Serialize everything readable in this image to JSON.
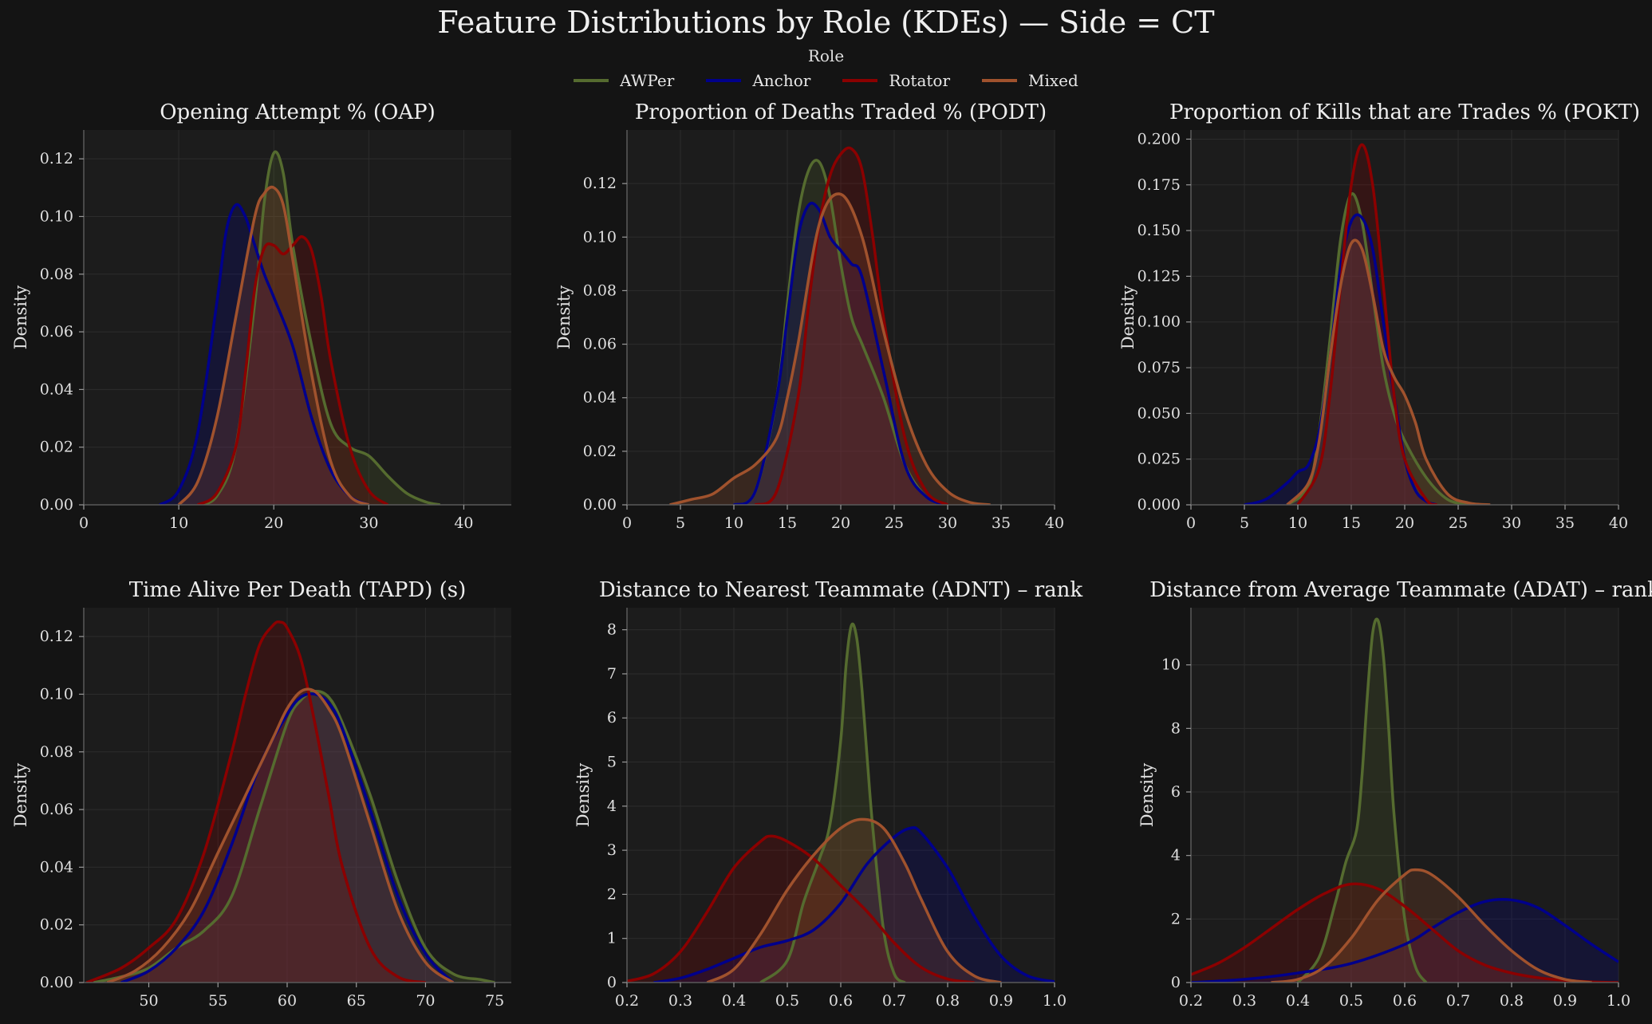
{
  "title": "Feature Distributions by Role (KDEs) — Side = CT",
  "legend": {
    "title": "Role",
    "placement": "top-center",
    "items": [
      {
        "label": "AWPer",
        "color": "#556b2f"
      },
      {
        "label": "Anchor",
        "color": "#00008b"
      },
      {
        "label": "Rotator",
        "color": "#8b0000"
      },
      {
        "label": "Mixed",
        "color": "#a0522d"
      }
    ]
  },
  "chart_data": [
    {
      "type": "area",
      "title": "Opening Attempt % (OAP)",
      "ylabel": "Density",
      "xlim": [
        0,
        45
      ],
      "ylim": [
        0,
        0.13
      ],
      "xticks": [
        0,
        10,
        20,
        30,
        40
      ],
      "yticks": [
        0.0,
        0.02,
        0.04,
        0.06,
        0.08,
        0.1,
        0.12
      ],
      "ytick_labels": [
        "0.00",
        "0.02",
        "0.04",
        "0.06",
        "0.08",
        "0.10",
        "0.12"
      ],
      "grid": true,
      "series": [
        {
          "name": "AWPer",
          "x": [
            12,
            14,
            16,
            18,
            19,
            20,
            21,
            22,
            24,
            26,
            28,
            30,
            32,
            34,
            36,
            37.5
          ],
          "y": [
            0,
            0.003,
            0.02,
            0.07,
            0.105,
            0.122,
            0.115,
            0.09,
            0.055,
            0.028,
            0.02,
            0.017,
            0.01,
            0.004,
            0.001,
            0
          ]
        },
        {
          "name": "Anchor",
          "x": [
            8,
            10,
            12,
            14,
            15,
            16,
            17,
            18,
            19,
            20,
            22,
            24,
            26,
            28,
            30
          ],
          "y": [
            0,
            0.005,
            0.025,
            0.07,
            0.095,
            0.104,
            0.1,
            0.09,
            0.08,
            0.072,
            0.055,
            0.03,
            0.012,
            0.003,
            0
          ]
        },
        {
          "name": "Rotator",
          "x": [
            12,
            14,
            16,
            17,
            18,
            19,
            20,
            21,
            22,
            23,
            24,
            25,
            26,
            28,
            30,
            32
          ],
          "y": [
            0,
            0.004,
            0.02,
            0.045,
            0.075,
            0.089,
            0.09,
            0.087,
            0.09,
            0.093,
            0.088,
            0.072,
            0.05,
            0.02,
            0.005,
            0
          ]
        },
        {
          "name": "Mixed",
          "x": [
            10,
            12,
            14,
            16,
            18,
            19,
            20,
            21,
            22,
            24,
            26,
            28,
            30
          ],
          "y": [
            0,
            0.008,
            0.03,
            0.065,
            0.1,
            0.108,
            0.11,
            0.104,
            0.085,
            0.045,
            0.015,
            0.003,
            0
          ]
        }
      ]
    },
    {
      "type": "area",
      "title": "Proportion of Deaths Traded % (PODT)",
      "ylabel": "Density",
      "xlim": [
        0,
        40
      ],
      "ylim": [
        0,
        0.14
      ],
      "xticks": [
        0,
        5,
        10,
        15,
        20,
        25,
        30,
        35,
        40
      ],
      "yticks": [
        0.0,
        0.02,
        0.04,
        0.06,
        0.08,
        0.1,
        0.12
      ],
      "ytick_labels": [
        "0.00",
        "0.02",
        "0.04",
        "0.06",
        "0.08",
        "0.10",
        "0.12"
      ],
      "grid": true,
      "series": [
        {
          "name": "AWPer",
          "x": [
            10,
            12,
            14,
            15,
            16,
            17,
            18,
            19,
            20,
            21,
            22,
            24,
            26,
            28,
            30
          ],
          "y": [
            0,
            0.005,
            0.04,
            0.075,
            0.108,
            0.125,
            0.128,
            0.115,
            0.09,
            0.07,
            0.06,
            0.04,
            0.015,
            0.003,
            0
          ]
        },
        {
          "name": "Anchor",
          "x": [
            10,
            12,
            14,
            15,
            16,
            17,
            18,
            19,
            20,
            21,
            22,
            24,
            26,
            28,
            30
          ],
          "y": [
            0,
            0.005,
            0.04,
            0.07,
            0.1,
            0.112,
            0.11,
            0.1,
            0.095,
            0.09,
            0.085,
            0.05,
            0.015,
            0.003,
            0
          ]
        },
        {
          "name": "Rotator",
          "x": [
            12,
            14,
            16,
            17,
            18,
            19,
            20,
            21,
            22,
            23,
            24,
            26,
            28,
            30
          ],
          "y": [
            0,
            0.005,
            0.04,
            0.075,
            0.105,
            0.123,
            0.131,
            0.133,
            0.125,
            0.1,
            0.07,
            0.025,
            0.005,
            0
          ]
        },
        {
          "name": "Mixed",
          "x": [
            4,
            6,
            8,
            10,
            12,
            14,
            15,
            16,
            18,
            20,
            22,
            24,
            26,
            28,
            30,
            32,
            34
          ],
          "y": [
            0,
            0.002,
            0.004,
            0.01,
            0.015,
            0.025,
            0.04,
            0.06,
            0.105,
            0.116,
            0.1,
            0.065,
            0.035,
            0.015,
            0.005,
            0.001,
            0
          ]
        }
      ]
    },
    {
      "type": "area",
      "title": "Proportion of Kills that are Trades % (POKT)",
      "ylabel": "Density",
      "xlim": [
        0,
        40
      ],
      "ylim": [
        0,
        0.205
      ],
      "xticks": [
        0,
        5,
        10,
        15,
        20,
        25,
        30,
        35,
        40
      ],
      "yticks": [
        0.0,
        0.025,
        0.05,
        0.075,
        0.1,
        0.125,
        0.15,
        0.175,
        0.2
      ],
      "ytick_labels": [
        "0.000",
        "0.025",
        "0.050",
        "0.075",
        "0.100",
        "0.125",
        "0.150",
        "0.175",
        "0.200"
      ],
      "grid": true,
      "series": [
        {
          "name": "AWPer",
          "x": [
            9,
            11,
            12,
            13,
            14,
            15,
            16,
            17,
            18,
            19,
            20,
            22,
            24,
            26
          ],
          "y": [
            0,
            0.01,
            0.04,
            0.09,
            0.145,
            0.17,
            0.155,
            0.115,
            0.075,
            0.05,
            0.035,
            0.015,
            0.003,
            0
          ]
        },
        {
          "name": "Anchor",
          "x": [
            5,
            7,
            9,
            10,
            11,
            12,
            13,
            14,
            15,
            16,
            17,
            18,
            19,
            20,
            21,
            22,
            23
          ],
          "y": [
            0,
            0.003,
            0.012,
            0.018,
            0.022,
            0.04,
            0.08,
            0.13,
            0.155,
            0.157,
            0.14,
            0.1,
            0.06,
            0.025,
            0.008,
            0.002,
            0
          ]
        },
        {
          "name": "Rotator",
          "x": [
            10,
            12,
            13,
            14,
            15,
            16,
            17,
            18,
            19,
            20,
            22,
            23
          ],
          "y": [
            0,
            0.02,
            0.06,
            0.12,
            0.175,
            0.197,
            0.175,
            0.12,
            0.06,
            0.025,
            0.003,
            0
          ]
        },
        {
          "name": "Mixed",
          "x": [
            9,
            11,
            12,
            13,
            14,
            15,
            16,
            17,
            18,
            19,
            20,
            21,
            22,
            24,
            26,
            28
          ],
          "y": [
            0,
            0.012,
            0.035,
            0.08,
            0.12,
            0.143,
            0.14,
            0.115,
            0.085,
            0.07,
            0.06,
            0.045,
            0.025,
            0.006,
            0.001,
            0
          ]
        }
      ]
    },
    {
      "type": "area",
      "title": "Time Alive Per Death (TAPD) (s)",
      "ylabel": "Density",
      "xlim": [
        45.3,
        76.2
      ],
      "ylim": [
        0,
        0.13
      ],
      "xticks": [
        50,
        55,
        60,
        65,
        70,
        75
      ],
      "yticks": [
        0.0,
        0.02,
        0.04,
        0.06,
        0.08,
        0.1,
        0.12
      ],
      "ytick_labels": [
        "0.00",
        "0.02",
        "0.04",
        "0.06",
        "0.08",
        "0.10",
        "0.12"
      ],
      "grid": true,
      "series": [
        {
          "name": "AWPer",
          "x": [
            46,
            48,
            50,
            52,
            54,
            56,
            58,
            60,
            61,
            62,
            63,
            64,
            66,
            68,
            70,
            72,
            74,
            75
          ],
          "y": [
            0,
            0.002,
            0.005,
            0.012,
            0.018,
            0.03,
            0.06,
            0.09,
            0.098,
            0.101,
            0.099,
            0.09,
            0.065,
            0.035,
            0.012,
            0.003,
            0.001,
            0
          ]
        },
        {
          "name": "Anchor",
          "x": [
            48,
            50,
            52,
            54,
            56,
            58,
            60,
            61,
            62,
            63,
            64,
            66,
            68,
            70,
            72
          ],
          "y": [
            0,
            0.004,
            0.012,
            0.025,
            0.048,
            0.075,
            0.093,
            0.099,
            0.1,
            0.097,
            0.088,
            0.06,
            0.03,
            0.01,
            0
          ]
        },
        {
          "name": "Rotator",
          "x": [
            45.5,
            48,
            50,
            52,
            54,
            56,
            57,
            58,
            59,
            59.5,
            60,
            61,
            62,
            63,
            64,
            66,
            68,
            70
          ],
          "y": [
            0,
            0.005,
            0.012,
            0.022,
            0.045,
            0.08,
            0.1,
            0.117,
            0.124,
            0.125,
            0.123,
            0.112,
            0.09,
            0.065,
            0.04,
            0.012,
            0.002,
            0
          ]
        },
        {
          "name": "Mixed",
          "x": [
            47,
            49,
            51,
            53,
            55,
            57,
            59,
            60,
            61,
            62,
            63,
            64,
            66,
            68,
            70,
            72
          ],
          "y": [
            0,
            0.004,
            0.012,
            0.025,
            0.045,
            0.065,
            0.085,
            0.095,
            0.101,
            0.101,
            0.095,
            0.085,
            0.055,
            0.025,
            0.007,
            0
          ]
        }
      ]
    },
    {
      "type": "area",
      "title": "Distance to Nearest Teammate (ADNT) – rank",
      "ylabel": "Density",
      "xlim": [
        0.2,
        1.0
      ],
      "ylim": [
        0,
        8.5
      ],
      "xticks": [
        0.2,
        0.3,
        0.4,
        0.5,
        0.6,
        0.7,
        0.8,
        0.9,
        1.0
      ],
      "xtick_labels": [
        "0.2",
        "0.3",
        "0.4",
        "0.5",
        "0.6",
        "0.7",
        "0.8",
        "0.9",
        "1.0"
      ],
      "yticks": [
        0,
        1,
        2,
        3,
        4,
        5,
        6,
        7,
        8
      ],
      "grid": true,
      "series": [
        {
          "name": "AWPer",
          "x": [
            0.45,
            0.5,
            0.53,
            0.56,
            0.58,
            0.6,
            0.61,
            0.62,
            0.63,
            0.64,
            0.65,
            0.66,
            0.68,
            0.7,
            0.72
          ],
          "y": [
            0,
            0.5,
            1.8,
            2.8,
            3.6,
            5.5,
            7.2,
            8.1,
            7.8,
            6.6,
            5.0,
            3.5,
            1.2,
            0.2,
            0
          ]
        },
        {
          "name": "Anchor",
          "x": [
            0.25,
            0.3,
            0.35,
            0.4,
            0.45,
            0.5,
            0.55,
            0.6,
            0.65,
            0.7,
            0.73,
            0.75,
            0.8,
            0.85,
            0.9,
            0.95,
            1.0
          ],
          "y": [
            0,
            0.1,
            0.3,
            0.55,
            0.8,
            0.95,
            1.2,
            1.8,
            2.7,
            3.3,
            3.5,
            3.4,
            2.6,
            1.5,
            0.6,
            0.15,
            0.02
          ]
        },
        {
          "name": "Rotator",
          "x": [
            0.2,
            0.25,
            0.3,
            0.35,
            0.4,
            0.45,
            0.47,
            0.5,
            0.55,
            0.6,
            0.65,
            0.7,
            0.75,
            0.8,
            0.85
          ],
          "y": [
            0.03,
            0.2,
            0.7,
            1.6,
            2.6,
            3.2,
            3.32,
            3.2,
            2.8,
            2.2,
            1.6,
            0.9,
            0.35,
            0.08,
            0
          ]
        },
        {
          "name": "Mixed",
          "x": [
            0.35,
            0.4,
            0.45,
            0.5,
            0.55,
            0.6,
            0.64,
            0.68,
            0.72,
            0.75,
            0.8,
            0.85,
            0.9
          ],
          "y": [
            0,
            0.3,
            1.1,
            2.1,
            2.9,
            3.5,
            3.7,
            3.5,
            2.7,
            1.9,
            0.7,
            0.15,
            0
          ]
        }
      ]
    },
    {
      "type": "area",
      "title": "Distance from Average Teammate (ADAT) – rank",
      "ylabel": "Density",
      "xlim": [
        0.2,
        1.0
      ],
      "ylim": [
        0,
        11.8
      ],
      "xticks": [
        0.2,
        0.3,
        0.4,
        0.5,
        0.6,
        0.7,
        0.8,
        0.9,
        1.0
      ],
      "xtick_labels": [
        "0.2",
        "0.3",
        "0.4",
        "0.5",
        "0.6",
        "0.7",
        "0.8",
        "0.9",
        "1.0"
      ],
      "yticks": [
        0,
        2,
        4,
        6,
        8,
        10
      ],
      "grid": true,
      "series": [
        {
          "name": "AWPer",
          "x": [
            0.4,
            0.44,
            0.47,
            0.49,
            0.51,
            0.52,
            0.53,
            0.54,
            0.55,
            0.56,
            0.57,
            0.58,
            0.6,
            0.62,
            0.64
          ],
          "y": [
            0,
            0.8,
            2.5,
            3.8,
            4.8,
            6.5,
            9.0,
            11.0,
            11.4,
            10.3,
            8.0,
            5.3,
            2.0,
            0.5,
            0
          ]
        },
        {
          "name": "Anchor",
          "x": [
            0.2,
            0.3,
            0.4,
            0.5,
            0.6,
            0.65,
            0.7,
            0.75,
            0.8,
            0.85,
            0.9,
            0.95,
            1.0
          ],
          "y": [
            0,
            0.1,
            0.3,
            0.6,
            1.2,
            1.7,
            2.2,
            2.55,
            2.6,
            2.35,
            1.8,
            1.2,
            0.65
          ]
        },
        {
          "name": "Rotator",
          "x": [
            0.2,
            0.25,
            0.3,
            0.35,
            0.4,
            0.45,
            0.5,
            0.55,
            0.6,
            0.65,
            0.7,
            0.75,
            0.8,
            0.85,
            0.9,
            0.95,
            1.0
          ],
          "y": [
            0.25,
            0.6,
            1.1,
            1.7,
            2.3,
            2.8,
            3.1,
            2.95,
            2.4,
            1.7,
            1.0,
            0.55,
            0.3,
            0.15,
            0.07,
            0.02,
            0
          ]
        },
        {
          "name": "Mixed",
          "x": [
            0.35,
            0.4,
            0.45,
            0.5,
            0.55,
            0.6,
            0.62,
            0.65,
            0.7,
            0.75,
            0.8,
            0.85,
            0.9,
            0.95
          ],
          "y": [
            0,
            0.1,
            0.5,
            1.4,
            2.6,
            3.4,
            3.55,
            3.4,
            2.7,
            1.8,
            1.0,
            0.4,
            0.1,
            0
          ]
        }
      ]
    }
  ]
}
